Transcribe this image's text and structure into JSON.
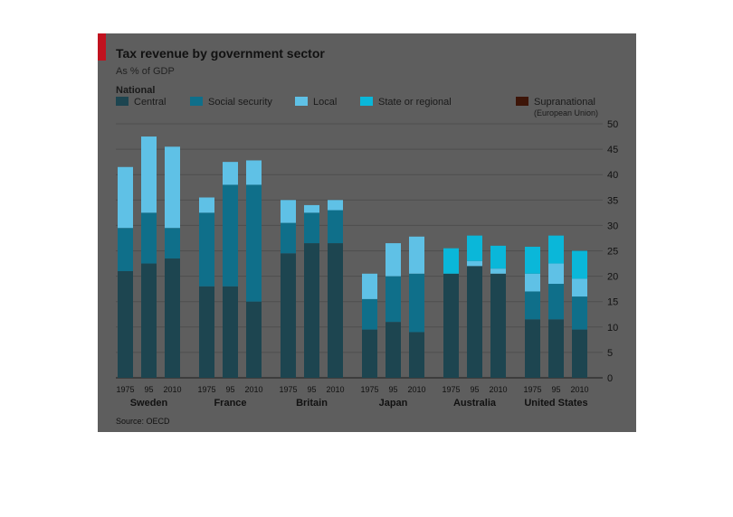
{
  "chart_data": {
    "type": "bar",
    "stacked": true,
    "title": "Tax revenue by government sector",
    "subtitle": "As % of GDP",
    "legend_group_label": "National",
    "source": "Source: OECD",
    "ylim": [
      0,
      50
    ],
    "yticks": [
      "0",
      "5",
      "10",
      "15",
      "20",
      "25",
      "30",
      "35",
      "40",
      "45",
      "50"
    ],
    "grid": true,
    "legend_position": "top",
    "legend": [
      {
        "key": "central",
        "name": "Central",
        "color": "#1d4550"
      },
      {
        "key": "social",
        "name": "Social security",
        "color": "#0f6f8a"
      },
      {
        "key": "local",
        "name": "Local",
        "color": "#5fc1e6"
      },
      {
        "key": "state",
        "name": "State or regional",
        "color": "#0ab7d9"
      },
      {
        "key": "supra",
        "name": "Supranational",
        "note": "(European Union)",
        "color": "#3d1508"
      }
    ],
    "years": [
      "1975",
      "95",
      "2010"
    ],
    "groups": [
      {
        "country": "Sweden",
        "bars": [
          {
            "central": 21.0,
            "social": 8.5,
            "local": 12.0
          },
          {
            "central": 22.5,
            "social": 10.0,
            "local": 15.0
          },
          {
            "central": 23.5,
            "social": 6.0,
            "local": 16.0
          }
        ]
      },
      {
        "country": "France",
        "bars": [
          {
            "central": 18.0,
            "social": 14.5,
            "local": 3.0
          },
          {
            "central": 18.0,
            "social": 20.0,
            "local": 4.5
          },
          {
            "central": 15.0,
            "social": 23.0,
            "local": 4.8
          }
        ]
      },
      {
        "country": "Britain",
        "bars": [
          {
            "central": 24.5,
            "social": 6.0,
            "local": 4.5
          },
          {
            "central": 26.5,
            "social": 6.0,
            "local": 1.5
          },
          {
            "central": 26.5,
            "social": 6.5,
            "local": 2.0
          }
        ]
      },
      {
        "country": "Japan",
        "bars": [
          {
            "central": 9.5,
            "social": 6.0,
            "local": 5.0
          },
          {
            "central": 11.0,
            "social": 9.0,
            "local": 6.5
          },
          {
            "central": 9.0,
            "social": 11.5,
            "local": 7.3
          }
        ]
      },
      {
        "country": "Australia",
        "bars": [
          {
            "central": 20.5,
            "state": 5.0
          },
          {
            "central": 22.0,
            "local": 1.0,
            "state": 5.0
          },
          {
            "central": 20.5,
            "local": 1.0,
            "state": 4.5
          }
        ]
      },
      {
        "country": "United States",
        "bars": [
          {
            "central": 11.5,
            "social": 5.5,
            "local": 3.5,
            "state": 5.3
          },
          {
            "central": 11.5,
            "social": 7.0,
            "local": 4.0,
            "state": 5.5
          },
          {
            "central": 9.5,
            "social": 6.5,
            "local": 3.5,
            "state": 5.5
          }
        ]
      }
    ]
  }
}
